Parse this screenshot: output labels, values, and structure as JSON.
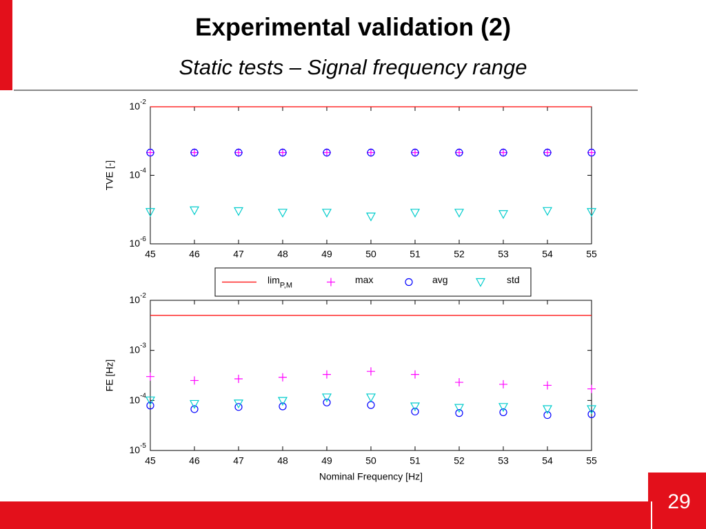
{
  "slide": {
    "title": "Experimental validation (2)",
    "subtitle": "Static tests – Signal frequency range",
    "page_number": "29"
  },
  "chart_data": [
    {
      "type": "scatter",
      "ylabel": "TVE [-]",
      "log_y": true,
      "xlim": [
        45,
        55
      ],
      "xticks": [
        45,
        46,
        47,
        48,
        49,
        50,
        51,
        52,
        53,
        54,
        55
      ],
      "ylim": [
        1e-06,
        0.01
      ],
      "yticks": [
        {
          "value": 1e-06,
          "label": "10-6"
        },
        {
          "value": 0.0001,
          "label": "10-4"
        },
        {
          "value": 0.01,
          "label": "10-2"
        }
      ],
      "x": [
        45,
        46,
        47,
        48,
        49,
        50,
        51,
        52,
        53,
        54,
        55
      ],
      "series": [
        {
          "name": "limP,M",
          "color": "#ff0000",
          "marker": "line",
          "value": 0.01
        },
        {
          "name": "max",
          "color": "#ff00ff",
          "marker": "plus",
          "values": [
            0.00046,
            0.00046,
            0.00046,
            0.00046,
            0.00046,
            0.00046,
            0.00046,
            0.00046,
            0.00046,
            0.00046,
            0.00046
          ]
        },
        {
          "name": "avg",
          "color": "#0000ff",
          "marker": "circle",
          "values": [
            0.00046,
            0.00046,
            0.00046,
            0.00046,
            0.00046,
            0.00046,
            0.00046,
            0.00046,
            0.00046,
            0.00046,
            0.00046
          ]
        },
        {
          "name": "std",
          "color": "#00cccc",
          "marker": "triangle",
          "values": [
            8.5e-06,
            9.5e-06,
            9e-06,
            8.1e-06,
            8.1e-06,
            6.3e-06,
            8.1e-06,
            8.1e-06,
            7.4e-06,
            9.1e-06,
            8.5e-06
          ]
        }
      ],
      "legend": "bottom"
    },
    {
      "type": "scatter",
      "xlabel": "Nominal Frequency [Hz]",
      "ylabel": "FE [Hz]",
      "log_y": true,
      "xlim": [
        45,
        55
      ],
      "xticks": [
        45,
        46,
        47,
        48,
        49,
        50,
        51,
        52,
        53,
        54,
        55
      ],
      "ylim": [
        1e-05,
        0.01
      ],
      "yticks": [
        {
          "value": 1e-05,
          "label": "10-5"
        },
        {
          "value": 0.0001,
          "label": "10-4"
        },
        {
          "value": 0.001,
          "label": "10-3"
        },
        {
          "value": 0.01,
          "label": "10-2"
        }
      ],
      "x": [
        45,
        46,
        47,
        48,
        49,
        50,
        51,
        52,
        53,
        54,
        55
      ],
      "series": [
        {
          "color": "#ff0000",
          "marker": "line",
          "value": 0.005
        },
        {
          "color": "#ff00ff",
          "marker": "plus",
          "values": [
            0.0003,
            0.00025,
            0.00027,
            0.00029,
            0.00033,
            0.00038,
            0.00033,
            0.00023,
            0.00021,
            0.0002,
            0.00017
          ]
        },
        {
          "color": "#0000ff",
          "marker": "circle",
          "values": [
            7.9e-05,
            6.7e-05,
            7.4e-05,
            7.6e-05,
            9.1e-05,
            8.1e-05,
            6e-05,
            5.6e-05,
            5.8e-05,
            5.1e-05,
            5.3e-05
          ]
        },
        {
          "color": "#00cccc",
          "marker": "triangle",
          "values": [
            0.0001,
            8.5e-05,
            8.7e-05,
            9.8e-05,
            0.000115,
            0.000115,
            7.6e-05,
            7.1e-05,
            7.4e-05,
            6.7e-05,
            6.7e-05
          ]
        }
      ]
    }
  ]
}
